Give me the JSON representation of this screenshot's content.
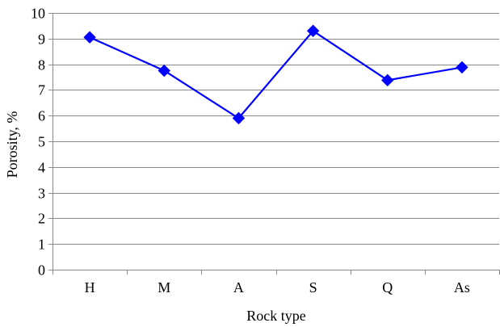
{
  "chart_data": {
    "type": "line",
    "title": "",
    "xlabel": "Rock type",
    "ylabel": "Porosity, %",
    "categories": [
      "H",
      "M",
      "A",
      "S",
      "Q",
      "As"
    ],
    "series": [
      {
        "values": [
          9.05,
          7.75,
          5.9,
          9.3,
          7.38,
          7.88
        ],
        "marker": "diamond"
      }
    ],
    "ylim": [
      0,
      10
    ],
    "yticks": [
      0,
      1,
      2,
      3,
      4,
      5,
      6,
      7,
      8,
      9,
      10
    ],
    "grid": true,
    "legend": "none"
  },
  "colors": {
    "series": "#0000FF",
    "grid": "#888888",
    "axis": "#888888",
    "text": "#000000"
  }
}
